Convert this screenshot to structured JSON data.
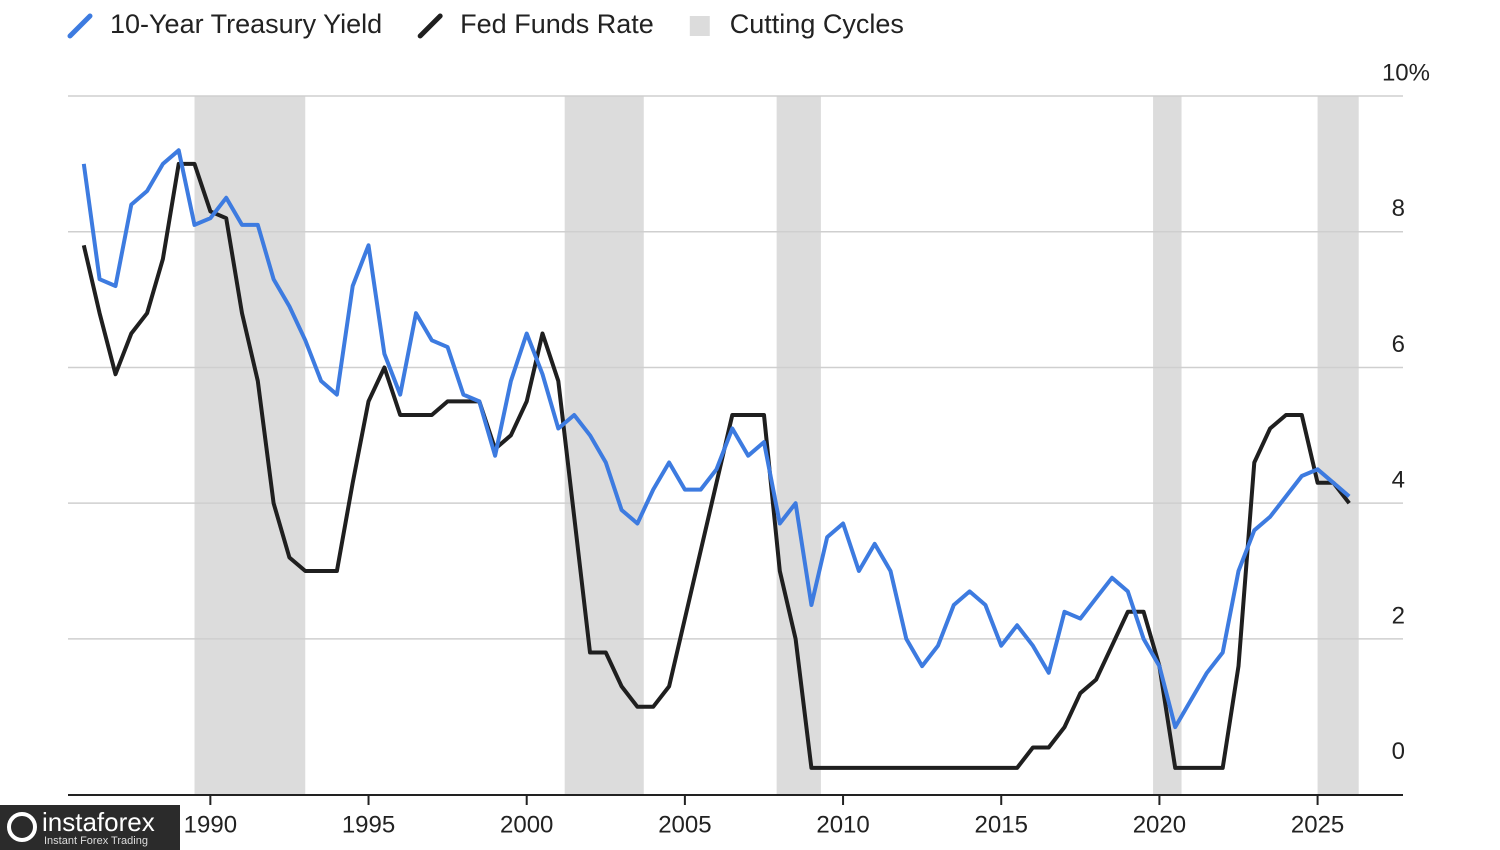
{
  "chart_data": {
    "type": "line",
    "x": [
      1986.0,
      1986.5,
      1987.0,
      1987.5,
      1988.0,
      1988.5,
      1989.0,
      1989.5,
      1990.0,
      1990.5,
      1991.0,
      1991.5,
      1992.0,
      1992.5,
      1993.0,
      1993.5,
      1994.0,
      1994.5,
      1995.0,
      1995.5,
      1996.0,
      1996.5,
      1997.0,
      1997.5,
      1998.0,
      1998.5,
      1999.0,
      1999.5,
      2000.0,
      2000.5,
      2001.0,
      2001.5,
      2002.0,
      2002.5,
      2003.0,
      2003.5,
      2004.0,
      2004.5,
      2005.0,
      2005.5,
      2006.0,
      2006.5,
      2007.0,
      2007.5,
      2008.0,
      2008.5,
      2009.0,
      2009.5,
      2010.0,
      2010.5,
      2011.0,
      2011.5,
      2012.0,
      2012.5,
      2013.0,
      2013.5,
      2014.0,
      2014.5,
      2015.0,
      2015.5,
      2016.0,
      2016.5,
      2017.0,
      2017.5,
      2018.0,
      2018.5,
      2019.0,
      2019.5,
      2020.0,
      2020.5,
      2021.0,
      2021.5,
      2022.0,
      2022.5,
      2023.0,
      2023.5,
      2024.0,
      2024.5,
      2025.0,
      2025.5,
      2026.0
    ],
    "series": [
      {
        "name": "10-Year Treasury Yield",
        "color": "#3d7be0",
        "values": [
          9.0,
          7.3,
          7.2,
          8.4,
          8.6,
          9.0,
          9.2,
          8.1,
          8.2,
          8.5,
          8.1,
          8.1,
          7.3,
          6.9,
          6.4,
          5.8,
          5.6,
          7.2,
          7.8,
          6.2,
          5.6,
          6.8,
          6.4,
          6.3,
          5.6,
          5.5,
          4.7,
          5.8,
          6.5,
          5.9,
          5.1,
          5.3,
          5.0,
          4.6,
          3.9,
          3.7,
          4.2,
          4.6,
          4.2,
          4.2,
          4.5,
          5.1,
          4.7,
          4.9,
          3.7,
          4.0,
          2.5,
          3.5,
          3.7,
          3.0,
          3.4,
          3.0,
          2.0,
          1.6,
          1.9,
          2.5,
          2.7,
          2.5,
          1.9,
          2.2,
          1.9,
          1.5,
          2.4,
          2.3,
          2.6,
          2.9,
          2.7,
          2.0,
          1.6,
          0.7,
          1.1,
          1.5,
          1.8,
          3.0,
          3.6,
          3.8,
          4.1,
          4.4,
          4.5,
          4.3,
          4.1
        ]
      },
      {
        "name": "Fed Funds Rate",
        "color": "#1f1f1f",
        "values": [
          7.8,
          6.8,
          5.9,
          6.5,
          6.8,
          7.6,
          9.0,
          9.0,
          8.3,
          8.2,
          6.8,
          5.8,
          4.0,
          3.2,
          3.0,
          3.0,
          3.0,
          4.3,
          5.5,
          6.0,
          5.3,
          5.3,
          5.3,
          5.5,
          5.5,
          5.5,
          4.8,
          5.0,
          5.5,
          6.5,
          5.8,
          3.8,
          1.8,
          1.8,
          1.3,
          1.0,
          1.0,
          1.3,
          2.3,
          3.3,
          4.3,
          5.3,
          5.3,
          5.3,
          3.0,
          2.0,
          0.1,
          0.1,
          0.1,
          0.1,
          0.1,
          0.1,
          0.1,
          0.1,
          0.1,
          0.1,
          0.1,
          0.1,
          0.1,
          0.1,
          0.4,
          0.4,
          0.7,
          1.2,
          1.4,
          1.9,
          2.4,
          2.4,
          1.6,
          0.1,
          0.1,
          0.1,
          0.1,
          1.6,
          4.6,
          5.1,
          5.3,
          5.3,
          4.3,
          4.3,
          4.0
        ]
      }
    ],
    "shaded": {
      "name": "Cutting Cycles",
      "color": "#dcdcdc",
      "ranges": [
        [
          1989.5,
          1993.0
        ],
        [
          2001.2,
          2003.7
        ],
        [
          2007.9,
          2009.3
        ],
        [
          2019.8,
          2020.7
        ],
        [
          2025.0,
          2026.3
        ]
      ]
    },
    "xlim": [
      1985.5,
      2027.7
    ],
    "xticks": [
      1990,
      1995,
      2000,
      2005,
      2010,
      2015,
      2020,
      2025
    ],
    "ylim": [
      -0.3,
      10
    ],
    "yticks": [
      0,
      2,
      4,
      6,
      8,
      {
        "value": 10,
        "label": "10%"
      }
    ],
    "grid": true,
    "legend": "top"
  },
  "watermark": {
    "brand": "instaforex",
    "tagline": "Instant Forex Trading"
  }
}
